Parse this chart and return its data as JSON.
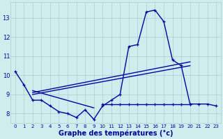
{
  "xlabel": "Graphe des températures (°c)",
  "background_color": "#d0ecec",
  "line_color": "#0000bb",
  "x_hours": [
    0,
    1,
    2,
    3,
    4,
    5,
    6,
    7,
    8,
    9,
    10,
    11,
    12,
    13,
    14,
    15,
    16,
    17,
    18,
    19,
    20,
    21,
    22,
    23
  ],
  "curve_main": [
    10.2,
    9.5,
    8.7,
    8.7,
    8.4,
    8.1,
    8.0,
    7.8,
    8.2,
    7.7,
    8.4,
    8.7,
    9.0,
    11.5,
    11.6,
    13.3,
    13.4,
    12.8,
    10.8,
    10.5,
    8.5,
    8.5,
    8.5,
    8.4
  ],
  "curve_flat": [
    [
      10,
      8.5
    ],
    [
      11,
      8.5
    ],
    [
      12,
      8.5
    ],
    [
      13,
      8.5
    ],
    [
      14,
      8.5
    ],
    [
      15,
      8.5
    ],
    [
      16,
      8.5
    ],
    [
      17,
      8.5
    ],
    [
      18,
      8.5
    ],
    [
      19,
      8.5
    ],
    [
      20,
      8.5
    ]
  ],
  "line_rise1": [
    [
      2,
      9.1
    ],
    [
      20,
      10.7
    ]
  ],
  "line_rise2": [
    [
      2,
      9.0
    ],
    [
      20,
      10.5
    ]
  ],
  "line_fall": [
    [
      2,
      9.2
    ],
    [
      9,
      8.3
    ]
  ],
  "ylim_min": 7.5,
  "ylim_max": 13.8,
  "yticks": [
    8,
    9,
    10,
    11,
    12,
    13
  ],
  "grid_color": "#b0cccc",
  "lw": 1.0,
  "ms": 3.5
}
